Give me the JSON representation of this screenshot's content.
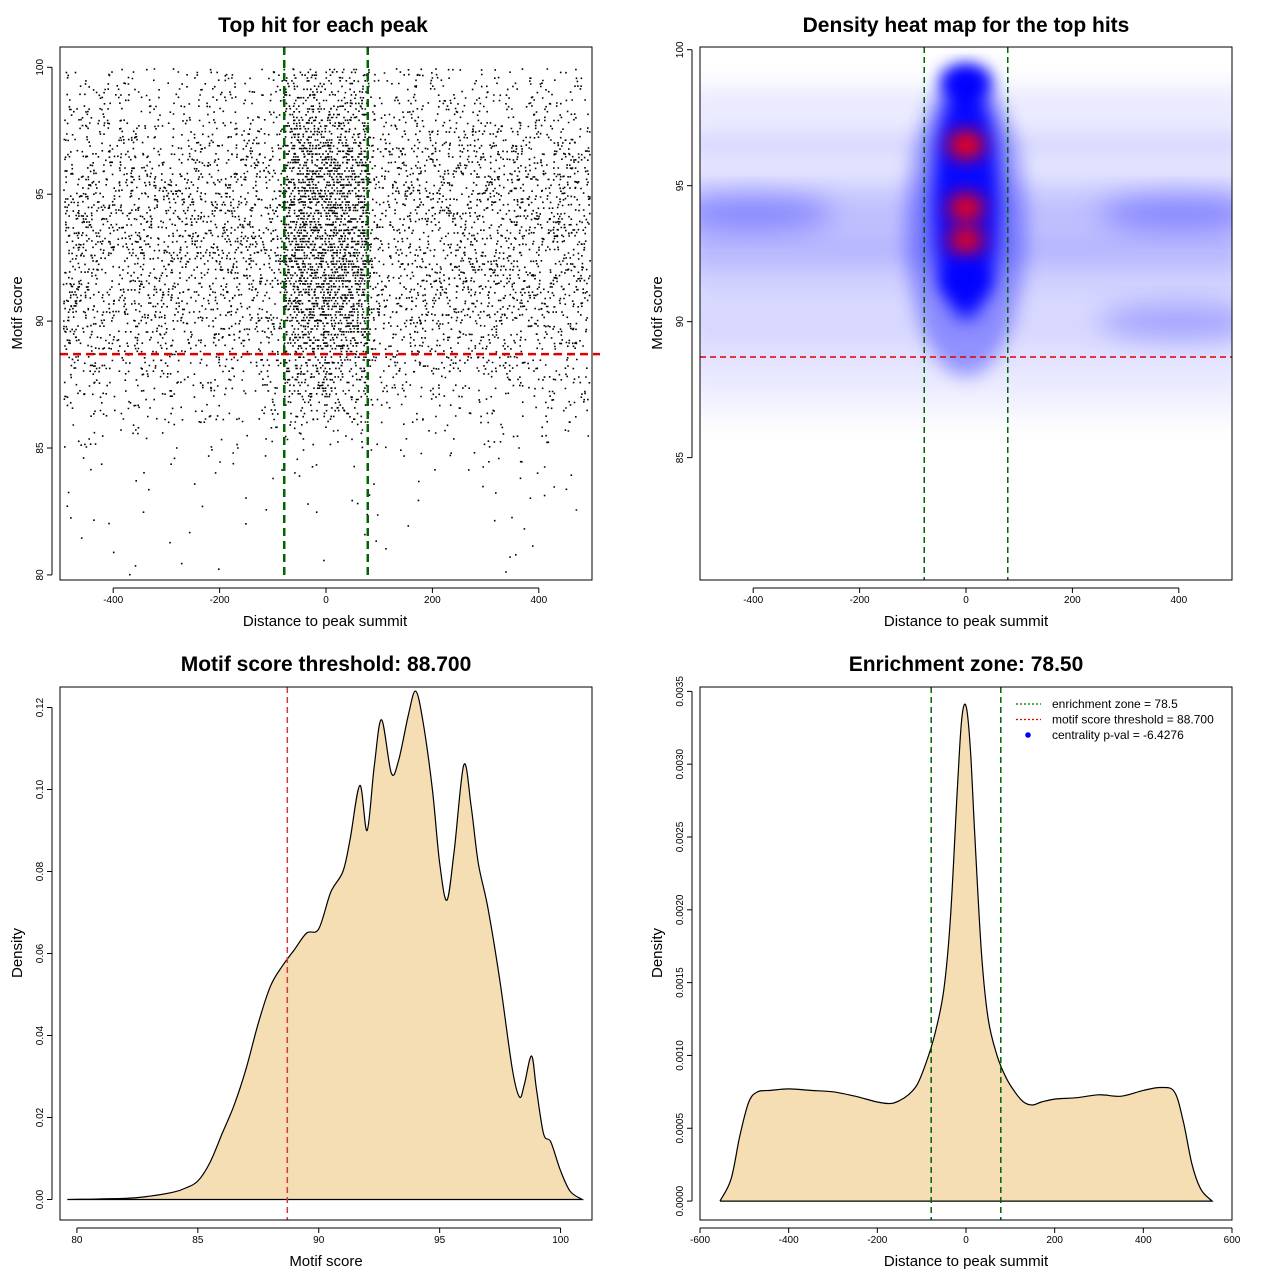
{
  "chart_data": [
    {
      "id": "scatter",
      "type": "scatter",
      "title": "Top hit for each peak",
      "xlabel": "Distance to peak summit",
      "ylabel": "Motif score",
      "xlim": [
        -500,
        500
      ],
      "ylim": [
        79.8,
        100.8
      ],
      "xticks": [
        -400,
        -200,
        0,
        200,
        400
      ],
      "yticks": [
        80,
        85,
        90,
        95,
        100
      ],
      "xtick_labels": [
        "-400",
        "-200",
        "0",
        "200",
        "400"
      ],
      "ytick_labels": [
        "80",
        "85",
        "90",
        "95",
        "100"
      ],
      "point_x_range": [
        -495,
        495
      ],
      "score_distribution": {
        "bands": [
          [
            100,
            99
          ],
          [
            99,
            98
          ],
          [
            98,
            97
          ],
          [
            97,
            96
          ],
          [
            96,
            95
          ],
          [
            95,
            94
          ],
          [
            94,
            93
          ],
          [
            93,
            92
          ],
          [
            92,
            91
          ],
          [
            91,
            90
          ],
          [
            90,
            89
          ],
          [
            89,
            88
          ],
          [
            88,
            87
          ],
          [
            87,
            86
          ],
          [
            86,
            85
          ],
          [
            85,
            84
          ],
          [
            84,
            83
          ],
          [
            83,
            82
          ],
          [
            82,
            81
          ],
          [
            81,
            80
          ]
        ],
        "relative_density": [
          0.35,
          0.45,
          0.6,
          0.85,
          0.95,
          1.0,
          1.0,
          0.98,
          0.95,
          0.9,
          0.75,
          0.55,
          0.4,
          0.25,
          0.12,
          0.05,
          0.02,
          0.01,
          0.005,
          0.002
        ]
      },
      "enrichment_zone": [
        -78.5,
        78.5
      ],
      "threshold": 88.7,
      "colors": {
        "points": "#000000",
        "zone": "#006400",
        "threshold": "#e00000"
      }
    },
    {
      "id": "heatmap",
      "type": "heatmap",
      "title": "Density heat map for the top hits",
      "xlabel": "Distance to peak summit",
      "ylabel": "Motif score",
      "xlim": [
        -500,
        500
      ],
      "ylim": [
        80.5,
        100.1
      ],
      "xticks": [
        -400,
        -200,
        0,
        200,
        400
      ],
      "yticks": [
        85,
        90,
        95,
        100
      ],
      "xtick_labels": [
        "-400",
        "-200",
        "0",
        "200",
        "400"
      ],
      "ytick_labels": [
        "85",
        "90",
        "95",
        "100"
      ],
      "hotspots": [
        {
          "x": 0,
          "y": 96.5,
          "intensity": 1.0
        },
        {
          "x": 0,
          "y": 94.2,
          "intensity": 0.95
        },
        {
          "x": 0,
          "y": 93.0,
          "intensity": 0.9
        },
        {
          "x": 0,
          "y": 98.8,
          "intensity": 0.6
        },
        {
          "x": 0,
          "y": 91.5,
          "intensity": 0.6
        },
        {
          "x": -400,
          "y": 94.0,
          "intensity": 0.3
        },
        {
          "x": 400,
          "y": 94.0,
          "intensity": 0.3
        },
        {
          "x": 400,
          "y": 90.0,
          "intensity": 0.25
        }
      ],
      "enrichment_zone": [
        -78.5,
        78.5
      ],
      "threshold": 88.7,
      "colors": {
        "low": "#ffffff",
        "mid": "#0000ff",
        "high": "#ff0000",
        "zone": "#006400",
        "threshold": "#e00000"
      }
    },
    {
      "id": "score-density",
      "type": "area",
      "title": "Motif score threshold: 88.700",
      "xlabel": "Motif score",
      "ylabel": "Density",
      "xlim": [
        79.3,
        101.3
      ],
      "ylim": [
        -0.005,
        0.125
      ],
      "xticks": [
        80,
        85,
        90,
        95,
        100
      ],
      "yticks": [
        0,
        0.02,
        0.04,
        0.06,
        0.08,
        0.1,
        0.12
      ],
      "xtick_labels": [
        "80",
        "85",
        "90",
        "95",
        "100"
      ],
      "ytick_labels": [
        "0.00",
        "0.02",
        "0.04",
        "0.06",
        "0.08",
        "0.10",
        "0.12"
      ],
      "x": [
        79.6,
        82,
        83,
        84,
        84.5,
        85,
        85.5,
        86,
        86.5,
        87,
        87.5,
        88,
        88.5,
        89,
        89.5,
        90,
        90.5,
        91,
        91.3,
        91.7,
        92,
        92.3,
        92.6,
        93,
        93.3,
        93.7,
        94,
        94.3,
        94.7,
        95,
        95.3,
        95.6,
        96,
        96.3,
        96.6,
        97,
        97.5,
        98,
        98.3,
        98.5,
        98.8,
        99,
        99.3,
        99.6,
        100,
        100.4,
        100.9
      ],
      "y": [
        0,
        0.0003,
        0.0008,
        0.0018,
        0.0028,
        0.0045,
        0.009,
        0.016,
        0.023,
        0.032,
        0.043,
        0.052,
        0.057,
        0.061,
        0.065,
        0.066,
        0.075,
        0.08,
        0.088,
        0.101,
        0.09,
        0.106,
        0.117,
        0.104,
        0.107,
        0.118,
        0.124,
        0.117,
        0.1,
        0.082,
        0.073,
        0.085,
        0.106,
        0.096,
        0.082,
        0.071,
        0.053,
        0.032,
        0.025,
        0.028,
        0.035,
        0.027,
        0.016,
        0.014,
        0.007,
        0.002,
        0
      ],
      "threshold": 88.7,
      "colors": {
        "fill": "#f5deb3",
        "line": "#000000",
        "threshold": "#cd3c3c"
      }
    },
    {
      "id": "distance-density",
      "type": "area",
      "title": "Enrichment zone: 78.50",
      "xlabel": "Distance to peak summit",
      "ylabel": "Density",
      "xlim": [
        -600,
        600
      ],
      "ylim": [
        -0.00013,
        0.00353
      ],
      "xticks": [
        -600,
        -400,
        -200,
        0,
        200,
        400,
        600
      ],
      "yticks": [
        0,
        0.0005,
        0.001,
        0.0015,
        0.002,
        0.0025,
        0.003,
        0.0035
      ],
      "xtick_labels": [
        "-600",
        "-400",
        "-200",
        "0",
        "200",
        "400",
        "600"
      ],
      "ytick_labels": [
        "0.0000",
        "0.0005",
        "0.0010",
        "0.0015",
        "0.0020",
        "0.0025",
        "0.0030",
        "0.0035"
      ],
      "x": [
        -555,
        -530,
        -510,
        -490,
        -470,
        -440,
        -400,
        -350,
        -300,
        -250,
        -200,
        -170,
        -150,
        -130,
        -110,
        -90,
        -70,
        -50,
        -35,
        -20,
        -10,
        0,
        10,
        20,
        35,
        50,
        70,
        90,
        110,
        130,
        150,
        170,
        200,
        250,
        300,
        350,
        400,
        440,
        470,
        490,
        510,
        530,
        555
      ],
      "y": [
        0,
        0.00015,
        0.00045,
        0.00068,
        0.00075,
        0.00076,
        0.00077,
        0.00076,
        0.00075,
        0.00072,
        0.00068,
        0.00067,
        0.00069,
        0.00073,
        0.0008,
        0.00095,
        0.00115,
        0.00145,
        0.00195,
        0.0028,
        0.0033,
        0.0034,
        0.0031,
        0.0025,
        0.0017,
        0.00125,
        0.001,
        0.00085,
        0.00075,
        0.00068,
        0.00066,
        0.00068,
        0.0007,
        0.00071,
        0.00073,
        0.00072,
        0.00076,
        0.00078,
        0.00075,
        0.00055,
        0.00025,
        8e-05,
        0
      ],
      "enrichment_zone": [
        -78.5,
        78.5
      ],
      "legend": {
        "position": "top-right",
        "entries": [
          {
            "label": "enrichment zone = 78.5",
            "color": "#006400",
            "style": "dotted-line"
          },
          {
            "label": "motif score threshold = 88.700",
            "color": "#e00000",
            "style": "dotted-line"
          },
          {
            "label": "centrality p-val = -6.4276",
            "color": "#0000ff",
            "style": "point"
          }
        ]
      },
      "colors": {
        "fill": "#f5deb3",
        "line": "#000000",
        "zone": "#006400"
      }
    }
  ]
}
